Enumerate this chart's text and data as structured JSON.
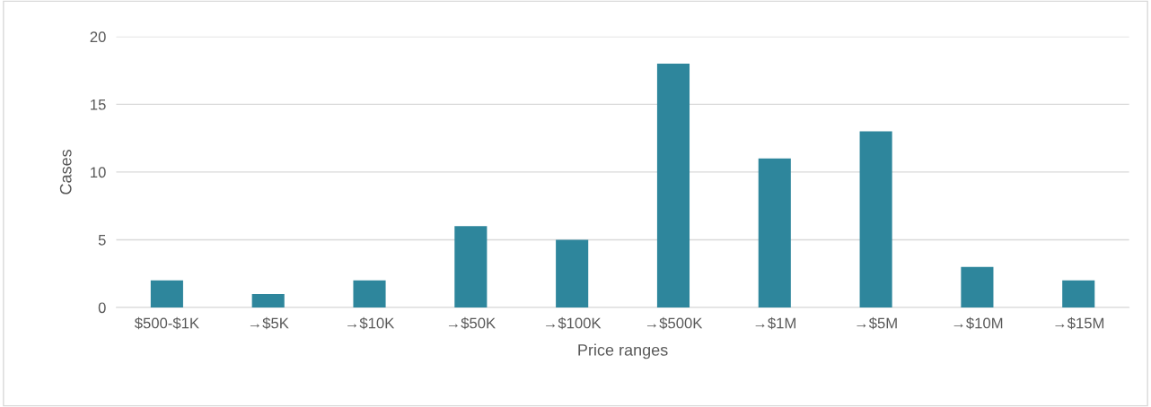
{
  "chart_data": {
    "type": "bar",
    "xlabel": "Price ranges",
    "ylabel": "Cases",
    "categories": [
      "$500-$1K",
      "→$5K",
      "→$10K",
      "→$50K",
      "→$100K",
      "→$500K",
      "→$1M",
      "→$5M",
      "→$10M",
      "→$15M"
    ],
    "values": [
      2,
      1,
      2,
      6,
      5,
      18,
      11,
      13,
      3,
      2
    ],
    "color": "#2e869c",
    "ylim": [
      0,
      20
    ],
    "yticks": [
      0,
      5,
      10,
      15,
      20
    ],
    "grid": "y",
    "legend": false
  }
}
